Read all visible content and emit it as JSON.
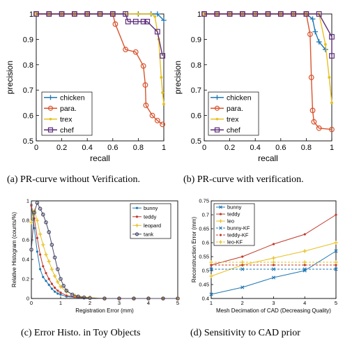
{
  "captions": {
    "a": "(a)  PR-curve without Verification.",
    "b": "(b)  PR-curve with verification.",
    "c": "(c)  Error Histo. in Toy Objects",
    "d": "(d)  Sensitivity to CAD prior"
  },
  "chart_data": [
    {
      "id": "a",
      "type": "line",
      "xlabel": "recall",
      "ylabel": "precision",
      "xlim": [
        0,
        1
      ],
      "ylim": [
        0.5,
        1
      ],
      "xticks": [
        "0",
        "0.2",
        "0.4",
        "0.6",
        "0.8",
        "1"
      ],
      "yticks": [
        "0.5",
        "0.6",
        "0.7",
        "0.8",
        "0.9",
        "1"
      ],
      "grid": false,
      "legend": "bottom-left",
      "series": [
        {
          "name": "chicken",
          "color": "#1f77b4",
          "marker": "plus",
          "x": [
            0,
            0.1,
            0.2,
            0.3,
            0.4,
            0.5,
            0.6,
            0.7,
            0.8,
            0.9,
            0.95,
            1.0
          ],
          "y": [
            1,
            1,
            1,
            1,
            1,
            1,
            1,
            1,
            1,
            1,
            1,
            0.975
          ]
        },
        {
          "name": "para.",
          "color": "#d9532c",
          "marker": "circle",
          "x": [
            0,
            0.1,
            0.2,
            0.3,
            0.4,
            0.5,
            0.6,
            0.62,
            0.7,
            0.78,
            0.84,
            0.855,
            0.86,
            0.91,
            0.95,
            0.99
          ],
          "y": [
            1,
            1,
            1,
            1,
            1,
            1,
            1,
            0.96,
            0.86,
            0.85,
            0.795,
            0.72,
            0.64,
            0.6,
            0.58,
            0.565
          ]
        },
        {
          "name": "trex",
          "color": "#e8c020",
          "marker": "dot",
          "x": [
            0,
            0.1,
            0.2,
            0.3,
            0.4,
            0.5,
            0.6,
            0.7,
            0.8,
            0.9,
            0.93,
            0.96,
            0.98,
            0.99,
            1.0
          ],
          "y": [
            1,
            1,
            1,
            1,
            1,
            1,
            1,
            1,
            1,
            1,
            0.99,
            0.9,
            0.75,
            0.69,
            0.645
          ]
        },
        {
          "name": "chef",
          "color": "#5b2c7a",
          "marker": "square",
          "x": [
            0,
            0.1,
            0.2,
            0.3,
            0.4,
            0.5,
            0.6,
            0.7,
            0.72,
            0.78,
            0.84,
            0.87,
            0.95,
            0.99
          ],
          "y": [
            1,
            1,
            1,
            1,
            1,
            1,
            1,
            1,
            0.97,
            0.97,
            0.97,
            0.97,
            0.93,
            0.835
          ]
        }
      ]
    },
    {
      "id": "b",
      "type": "line",
      "xlabel": "recall",
      "ylabel": "precision",
      "xlim": [
        0,
        1
      ],
      "ylim": [
        0.5,
        1
      ],
      "xticks": [
        "0",
        "0.2",
        "0.4",
        "0.6",
        "0.8",
        "1"
      ],
      "yticks": [
        "0.5",
        "0.6",
        "0.7",
        "0.8",
        "0.9",
        "1"
      ],
      "grid": false,
      "legend": "bottom-left",
      "series": [
        {
          "name": "chicken",
          "color": "#1f77b4",
          "marker": "plus",
          "x": [
            0,
            0.1,
            0.2,
            0.3,
            0.4,
            0.5,
            0.6,
            0.7,
            0.8,
            0.85,
            0.87,
            0.9,
            0.95
          ],
          "y": [
            1,
            1,
            1,
            1,
            1,
            1,
            1,
            1,
            1,
            0.98,
            0.93,
            0.89,
            0.86
          ]
        },
        {
          "name": "para.",
          "color": "#d9532c",
          "marker": "circle",
          "x": [
            0,
            0.1,
            0.2,
            0.3,
            0.4,
            0.5,
            0.6,
            0.7,
            0.8,
            0.83,
            0.84,
            0.85,
            0.86,
            0.9,
            1.0
          ],
          "y": [
            1,
            1,
            1,
            1,
            1,
            1,
            1,
            1,
            1,
            0.92,
            0.75,
            0.62,
            0.575,
            0.55,
            0.545
          ]
        },
        {
          "name": "trex",
          "color": "#e8c020",
          "marker": "dot",
          "x": [
            0,
            0.1,
            0.2,
            0.3,
            0.4,
            0.5,
            0.6,
            0.7,
            0.8,
            0.9,
            0.95,
            0.98,
            1.0
          ],
          "y": [
            1,
            1,
            1,
            1,
            1,
            1,
            1,
            1,
            1,
            1,
            0.88,
            0.75,
            0.65
          ]
        },
        {
          "name": "chef",
          "color": "#5b2c7a",
          "marker": "square",
          "x": [
            0,
            0.1,
            0.2,
            0.3,
            0.4,
            0.5,
            0.6,
            0.7,
            0.8,
            0.9,
            1.0,
            1.0
          ],
          "y": [
            1,
            1,
            1,
            1,
            1,
            1,
            1,
            1,
            1,
            1,
            0.91,
            0.835
          ]
        }
      ]
    },
    {
      "id": "c",
      "type": "line",
      "xlabel": "Registration Error (mm)",
      "ylabel": "Relative Histogram (counts/%)",
      "xlim": [
        0,
        5
      ],
      "ylim": [
        0,
        1
      ],
      "xticks": [
        "0",
        "1",
        "2",
        "3",
        "4",
        "5"
      ],
      "yticks": [
        "0",
        "0.2",
        "0.4",
        "0.6",
        "0.8",
        "1"
      ],
      "grid": false,
      "legend": "top-right",
      "series": [
        {
          "name": "bunny",
          "color": "#1f77b4",
          "marker": "dot",
          "x": [
            0,
            0.1,
            0.2,
            0.3,
            0.4,
            0.5,
            0.6,
            0.7,
            0.8,
            0.9,
            1.0,
            1.2,
            1.5,
            2,
            2.5,
            3,
            3.5,
            4,
            4.5,
            5
          ],
          "y": [
            0.96,
            0.72,
            0.48,
            0.3,
            0.22,
            0.18,
            0.14,
            0.1,
            0.07,
            0.05,
            0.04,
            0.02,
            0.01,
            0.005,
            0,
            0,
            0,
            0,
            0,
            0
          ]
        },
        {
          "name": "teddy",
          "color": "#c0392b",
          "marker": "dot",
          "x": [
            0,
            0.1,
            0.2,
            0.3,
            0.4,
            0.5,
            0.6,
            0.7,
            0.8,
            0.9,
            1.0,
            1.2,
            1.5,
            2,
            2.5,
            3,
            3.5,
            4,
            4.5,
            5
          ],
          "y": [
            0.95,
            0.82,
            0.62,
            0.45,
            0.33,
            0.26,
            0.2,
            0.15,
            0.11,
            0.08,
            0.06,
            0.03,
            0.015,
            0.005,
            0,
            0,
            0,
            0,
            0,
            0
          ]
        },
        {
          "name": "leopard",
          "color": "#e8c020",
          "marker": "plus",
          "x": [
            0,
            0.1,
            0.2,
            0.3,
            0.4,
            0.5,
            0.6,
            0.7,
            0.8,
            0.9,
            1.0,
            1.2,
            1.5,
            2,
            2.5,
            3,
            3.5,
            4,
            4.5,
            5
          ],
          "y": [
            0.78,
            0.9,
            0.8,
            0.66,
            0.55,
            0.45,
            0.38,
            0.3,
            0.23,
            0.17,
            0.12,
            0.07,
            0.03,
            0.01,
            0,
            0,
            0,
            0,
            0,
            0
          ]
        },
        {
          "name": "tank",
          "color": "#4a4a6a",
          "marker": "circle",
          "x": [
            0,
            0.1,
            0.2,
            0.3,
            0.4,
            0.5,
            0.6,
            0.7,
            0.8,
            0.9,
            1.0,
            1.1,
            1.2,
            1.4,
            1.6,
            1.8,
            2,
            2.5,
            3,
            3.5,
            4,
            4.5,
            5
          ],
          "y": [
            0.5,
            0.88,
            0.98,
            0.92,
            0.86,
            0.78,
            0.68,
            0.55,
            0.42,
            0.3,
            0.2,
            0.13,
            0.08,
            0.04,
            0.02,
            0.01,
            0.005,
            0,
            0,
            0,
            0,
            0,
            0
          ]
        }
      ]
    },
    {
      "id": "d",
      "type": "line",
      "xlabel": "Mesh Decimation of CAD (Decreasing Quality)",
      "ylabel": "Reconstruction Error (mm)",
      "xlim": [
        1,
        5
      ],
      "ylim": [
        0.4,
        0.75
      ],
      "xticks": [
        "1",
        "2",
        "3",
        "4",
        "5"
      ],
      "yticks": [
        "0.4",
        "0.45",
        "0.5",
        "0.55",
        "0.6",
        "0.65",
        "0.7",
        "0.75"
      ],
      "grid": false,
      "legend": "top-left",
      "series": [
        {
          "name": "bunny",
          "color": "#1f77b4",
          "marker": "x",
          "dash": false,
          "x": [
            1,
            2,
            3,
            4,
            5
          ],
          "y": [
            0.415,
            0.44,
            0.475,
            0.5,
            0.57
          ]
        },
        {
          "name": "teddy",
          "color": "#c0392b",
          "marker": "dot",
          "dash": false,
          "x": [
            1,
            2,
            3,
            4,
            5
          ],
          "y": [
            0.52,
            0.55,
            0.595,
            0.63,
            0.7
          ]
        },
        {
          "name": "leo",
          "color": "#e8c020",
          "marker": "plus",
          "dash": false,
          "x": [
            1,
            2,
            3,
            4,
            5
          ],
          "y": [
            0.48,
            0.52,
            0.545,
            0.57,
            0.6
          ]
        },
        {
          "name": "bunny-KF",
          "color": "#1f77b4",
          "marker": "x",
          "dash": true,
          "x": [
            1,
            2,
            3,
            4,
            5
          ],
          "y": [
            0.505,
            0.505,
            0.505,
            0.505,
            0.505
          ]
        },
        {
          "name": "teddy-KF",
          "color": "#c0392b",
          "marker": "dot",
          "dash": true,
          "x": [
            1,
            2,
            3,
            4,
            5
          ],
          "y": [
            0.52,
            0.52,
            0.52,
            0.52,
            0.52
          ]
        },
        {
          "name": "leo-KF",
          "color": "#e8c020",
          "marker": "plus",
          "dash": true,
          "x": [
            1,
            2,
            3,
            4,
            5
          ],
          "y": [
            0.53,
            0.53,
            0.53,
            0.53,
            0.53
          ]
        }
      ]
    }
  ]
}
